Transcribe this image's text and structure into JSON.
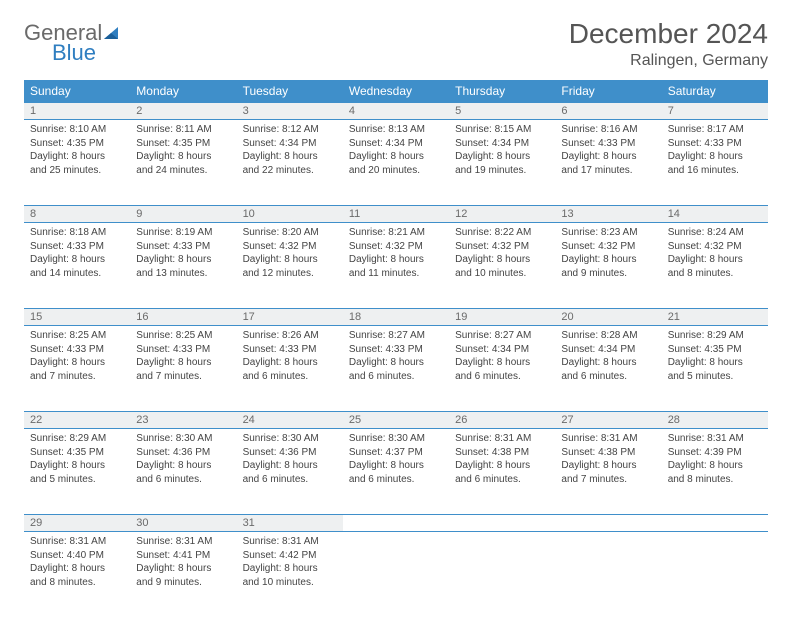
{
  "brand": {
    "line1": "General",
    "line2": "Blue"
  },
  "title": "December 2024",
  "location": "Ralingen, Germany",
  "colors": {
    "header_bg": "#3f8fca",
    "header_text": "#ffffff",
    "daynum_bg": "#eef0f1",
    "rule": "#3f8fca",
    "body_text": "#444444",
    "title_text": "#555555",
    "logo_gray": "#6a6a6a",
    "logo_blue": "#2f7ec0"
  },
  "layout": {
    "columns": 7,
    "rows": 5,
    "first_weekday": "Sunday"
  },
  "weekdays": [
    "Sunday",
    "Monday",
    "Tuesday",
    "Wednesday",
    "Thursday",
    "Friday",
    "Saturday"
  ],
  "days": [
    {
      "n": 1,
      "sunrise": "8:10 AM",
      "sunset": "4:35 PM",
      "daylight": "8 hours and 25 minutes."
    },
    {
      "n": 2,
      "sunrise": "8:11 AM",
      "sunset": "4:35 PM",
      "daylight": "8 hours and 24 minutes."
    },
    {
      "n": 3,
      "sunrise": "8:12 AM",
      "sunset": "4:34 PM",
      "daylight": "8 hours and 22 minutes."
    },
    {
      "n": 4,
      "sunrise": "8:13 AM",
      "sunset": "4:34 PM",
      "daylight": "8 hours and 20 minutes."
    },
    {
      "n": 5,
      "sunrise": "8:15 AM",
      "sunset": "4:34 PM",
      "daylight": "8 hours and 19 minutes."
    },
    {
      "n": 6,
      "sunrise": "8:16 AM",
      "sunset": "4:33 PM",
      "daylight": "8 hours and 17 minutes."
    },
    {
      "n": 7,
      "sunrise": "8:17 AM",
      "sunset": "4:33 PM",
      "daylight": "8 hours and 16 minutes."
    },
    {
      "n": 8,
      "sunrise": "8:18 AM",
      "sunset": "4:33 PM",
      "daylight": "8 hours and 14 minutes."
    },
    {
      "n": 9,
      "sunrise": "8:19 AM",
      "sunset": "4:33 PM",
      "daylight": "8 hours and 13 minutes."
    },
    {
      "n": 10,
      "sunrise": "8:20 AM",
      "sunset": "4:32 PM",
      "daylight": "8 hours and 12 minutes."
    },
    {
      "n": 11,
      "sunrise": "8:21 AM",
      "sunset": "4:32 PM",
      "daylight": "8 hours and 11 minutes."
    },
    {
      "n": 12,
      "sunrise": "8:22 AM",
      "sunset": "4:32 PM",
      "daylight": "8 hours and 10 minutes."
    },
    {
      "n": 13,
      "sunrise": "8:23 AM",
      "sunset": "4:32 PM",
      "daylight": "8 hours and 9 minutes."
    },
    {
      "n": 14,
      "sunrise": "8:24 AM",
      "sunset": "4:32 PM",
      "daylight": "8 hours and 8 minutes."
    },
    {
      "n": 15,
      "sunrise": "8:25 AM",
      "sunset": "4:33 PM",
      "daylight": "8 hours and 7 minutes."
    },
    {
      "n": 16,
      "sunrise": "8:25 AM",
      "sunset": "4:33 PM",
      "daylight": "8 hours and 7 minutes."
    },
    {
      "n": 17,
      "sunrise": "8:26 AM",
      "sunset": "4:33 PM",
      "daylight": "8 hours and 6 minutes."
    },
    {
      "n": 18,
      "sunrise": "8:27 AM",
      "sunset": "4:33 PM",
      "daylight": "8 hours and 6 minutes."
    },
    {
      "n": 19,
      "sunrise": "8:27 AM",
      "sunset": "4:34 PM",
      "daylight": "8 hours and 6 minutes."
    },
    {
      "n": 20,
      "sunrise": "8:28 AM",
      "sunset": "4:34 PM",
      "daylight": "8 hours and 6 minutes."
    },
    {
      "n": 21,
      "sunrise": "8:29 AM",
      "sunset": "4:35 PM",
      "daylight": "8 hours and 5 minutes."
    },
    {
      "n": 22,
      "sunrise": "8:29 AM",
      "sunset": "4:35 PM",
      "daylight": "8 hours and 5 minutes."
    },
    {
      "n": 23,
      "sunrise": "8:30 AM",
      "sunset": "4:36 PM",
      "daylight": "8 hours and 6 minutes."
    },
    {
      "n": 24,
      "sunrise": "8:30 AM",
      "sunset": "4:36 PM",
      "daylight": "8 hours and 6 minutes."
    },
    {
      "n": 25,
      "sunrise": "8:30 AM",
      "sunset": "4:37 PM",
      "daylight": "8 hours and 6 minutes."
    },
    {
      "n": 26,
      "sunrise": "8:31 AM",
      "sunset": "4:38 PM",
      "daylight": "8 hours and 6 minutes."
    },
    {
      "n": 27,
      "sunrise": "8:31 AM",
      "sunset": "4:38 PM",
      "daylight": "8 hours and 7 minutes."
    },
    {
      "n": 28,
      "sunrise": "8:31 AM",
      "sunset": "4:39 PM",
      "daylight": "8 hours and 8 minutes."
    },
    {
      "n": 29,
      "sunrise": "8:31 AM",
      "sunset": "4:40 PM",
      "daylight": "8 hours and 8 minutes."
    },
    {
      "n": 30,
      "sunrise": "8:31 AM",
      "sunset": "4:41 PM",
      "daylight": "8 hours and 9 minutes."
    },
    {
      "n": 31,
      "sunrise": "8:31 AM",
      "sunset": "4:42 PM",
      "daylight": "8 hours and 10 minutes."
    }
  ],
  "labels": {
    "sunrise": "Sunrise:",
    "sunset": "Sunset:",
    "daylight": "Daylight:"
  }
}
